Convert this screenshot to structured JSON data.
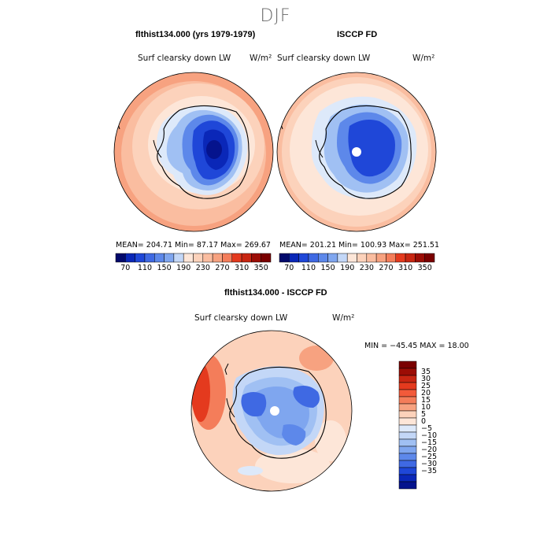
{
  "page": {
    "title": "DJF"
  },
  "palette": {
    "pos": [
      "#fde6d8",
      "#fcd2bb",
      "#fabda0",
      "#f7a280",
      "#f47d5a",
      "#f25a3a",
      "#e43a1e",
      "#c82612",
      "#9c0d05",
      "#7a0000"
    ],
    "neg": [
      "#dde9fa",
      "#c3d7f7",
      "#a0c0f3",
      "#7fa6ef",
      "#5d88ea",
      "#3f69e3",
      "#1f47d8",
      "#0a27b8",
      "#05138d",
      "#02096b"
    ],
    "ocean": "#fde6d6",
    "ice_edge": "#d9e7fa"
  },
  "left_panel": {
    "title": "flthist134.000 (yrs 1979-1979)",
    "variable": "Surf clearsky down LW",
    "units": "W/m²",
    "stats": "MEAN= 204.71   Min=  87.17   Max= 269.67"
  },
  "right_panel": {
    "title": "ISCCP FD",
    "variable": "Surf clearsky down LW",
    "units": "W/m²",
    "stats": "MEAN= 201.21   Min= 100.93   Max= 251.51"
  },
  "diff_panel": {
    "title": "flthist134.000 - ISCCP FD",
    "variable": "Surf clearsky down LW",
    "units": "W/m²",
    "stats": "MIN = −45.45  MAX =  18.00"
  },
  "colorbar_top": {
    "labels": [
      "70",
      "110",
      "150",
      "190",
      "230",
      "270",
      "310",
      "350"
    ],
    "colors": [
      "#02096b",
      "#0a27b8",
      "#1f47d8",
      "#3f69e3",
      "#5d88ea",
      "#7fa6ef",
      "#c3d7f7",
      "#fde6d8",
      "#fcd2bb",
      "#fabda0",
      "#f7a280",
      "#f47d5a",
      "#e43a1e",
      "#c82612",
      "#9c0d05",
      "#7a0000"
    ]
  },
  "colorbar_diff": {
    "labels": [
      "35",
      "30",
      "25",
      "20",
      "15",
      "10",
      "5",
      "0",
      "−5",
      "−10",
      "−15",
      "−20",
      "−25",
      "−30",
      "−35"
    ],
    "colors": [
      "#7a0000",
      "#9c0d05",
      "#c82612",
      "#e43a1e",
      "#f25a3a",
      "#f47d5a",
      "#f7a280",
      "#fcd2bb",
      "#fde6d8",
      "#dde9fa",
      "#c3d7f7",
      "#a0c0f3",
      "#7fa6ef",
      "#5d88ea",
      "#3f69e3",
      "#1f47d8",
      "#0a27b8",
      "#05138d"
    ]
  }
}
